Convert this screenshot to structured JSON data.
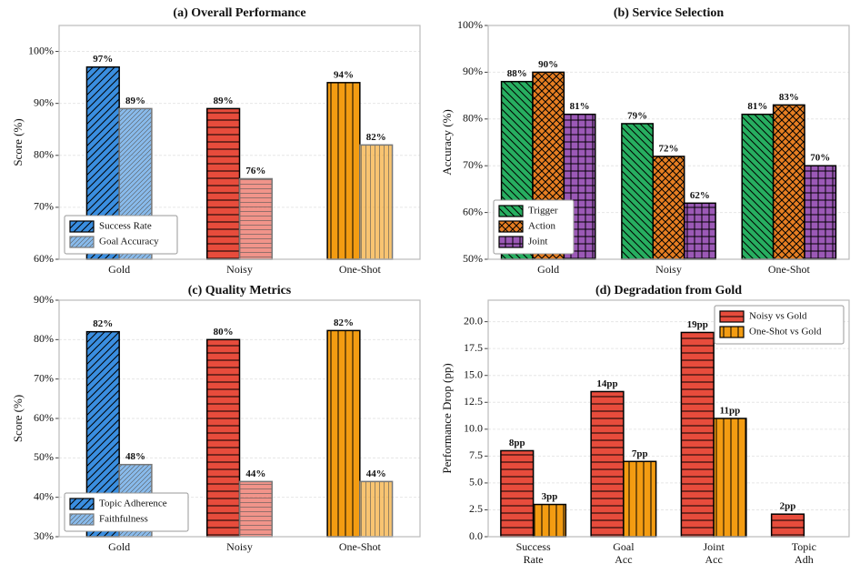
{
  "charts": [
    {
      "chart_data": {
        "type": "bar",
        "title": "(a) Overall Performance",
        "ylabel": "Score (%)",
        "categories": [
          "Gold",
          "Noisy",
          "One-Shot"
        ],
        "series": [
          {
            "name": "Success Rate",
            "colors": [
              "#3a8ee0",
              "#e74c3c",
              "#f39c12"
            ],
            "hatches": [
              "//",
              "-",
              "|"
            ],
            "values": [
              97,
              89,
              94
            ],
            "value_labels": [
              "97%",
              "89%",
              "94%"
            ]
          },
          {
            "name": "Goal Accuracy",
            "colors": [
              "#3a8ee0",
              "#e74c3c",
              "#f39c12"
            ],
            "hatches": [
              "//",
              "-",
              "|"
            ],
            "alpha": 0.6,
            "values": [
              89,
              75.5,
              82
            ],
            "value_labels": [
              "89%",
              "76%",
              "82%"
            ]
          }
        ],
        "ylim": [
          60,
          105
        ],
        "yticks": [
          {
            "value": 60,
            "label": "60%"
          },
          {
            "value": 70,
            "label": "70%"
          },
          {
            "value": 80,
            "label": "80%"
          },
          {
            "value": 90,
            "label": "90%"
          },
          {
            "value": 100,
            "label": "100%"
          }
        ],
        "grid": true,
        "legend": "lower left"
      }
    },
    {
      "chart_data": {
        "type": "bar",
        "title": "(b) Service Selection",
        "ylabel": "Accuracy (%)",
        "categories": [
          "Gold",
          "Noisy",
          "One-Shot"
        ],
        "series": [
          {
            "name": "Trigger",
            "color": "#27ae60",
            "hatch": "\\\\",
            "values": [
              88,
              79,
              81
            ],
            "value_labels": [
              "88%",
              "79%",
              "81%"
            ]
          },
          {
            "name": "Action",
            "color": "#e67e22",
            "hatch": "xx",
            "values": [
              90,
              72,
              83
            ],
            "value_labels": [
              "90%",
              "72%",
              "83%"
            ]
          },
          {
            "name": "Joint",
            "color": "#9b59b6",
            "hatch": "++",
            "values": [
              81,
              62,
              70
            ],
            "value_labels": [
              "81%",
              "62%",
              "70%"
            ]
          }
        ],
        "ylim": [
          50,
          100
        ],
        "yticks": [
          {
            "value": 50,
            "label": "50%"
          },
          {
            "value": 60,
            "label": "60%"
          },
          {
            "value": 70,
            "label": "70%"
          },
          {
            "value": 80,
            "label": "80%"
          },
          {
            "value": 90,
            "label": "90%"
          },
          {
            "value": 100,
            "label": "100%"
          }
        ],
        "grid": true,
        "legend": "lower left"
      }
    },
    {
      "chart_data": {
        "type": "bar",
        "title": "(c) Quality Metrics",
        "ylabel": "Score (%)",
        "categories": [
          "Gold",
          "Noisy",
          "One-Shot"
        ],
        "series": [
          {
            "name": "Topic Adherence",
            "colors": [
              "#3a8ee0",
              "#e74c3c",
              "#f39c12"
            ],
            "hatches": [
              "//",
              "-",
              "|"
            ],
            "values": [
              82,
              80,
              82.3
            ],
            "value_labels": [
              "82%",
              "80%",
              "82%"
            ]
          },
          {
            "name": "Faithfulness",
            "colors": [
              "#3a8ee0",
              "#e74c3c",
              "#f39c12"
            ],
            "hatches": [
              "//",
              "-",
              "|"
            ],
            "alpha": 0.6,
            "values": [
              48.3,
              44,
              44
            ],
            "value_labels": [
              "48%",
              "44%",
              "44%"
            ]
          }
        ],
        "ylim": [
          30,
          90
        ],
        "yticks": [
          {
            "value": 30,
            "label": "30%"
          },
          {
            "value": 40,
            "label": "40%"
          },
          {
            "value": 50,
            "label": "50%"
          },
          {
            "value": 60,
            "label": "60%"
          },
          {
            "value": 70,
            "label": "70%"
          },
          {
            "value": 80,
            "label": "80%"
          },
          {
            "value": 90,
            "label": "90%"
          }
        ],
        "grid": true,
        "legend": "lower left"
      }
    },
    {
      "chart_data": {
        "type": "bar",
        "title": "(d) Degradation from Gold",
        "ylabel": "Performance Drop (pp)",
        "categories": [
          "Success Rate",
          "Goal Acc",
          "Joint Acc",
          "Topic Adh"
        ],
        "series": [
          {
            "name": "Noisy vs Gold",
            "color": "#e74c3c",
            "hatch": "-",
            "values": [
              8,
              13.5,
              19,
              2.1
            ],
            "value_labels": [
              "8pp",
              "14pp",
              "19pp",
              "2pp"
            ]
          },
          {
            "name": "One-Shot vs Gold",
            "color": "#f39c12",
            "hatch": "|",
            "values": [
              3,
              7,
              11,
              null
            ],
            "value_labels": [
              "3pp",
              "7pp",
              "11pp",
              null
            ]
          }
        ],
        "ylim": [
          0,
          22
        ],
        "yticks": [
          {
            "value": 0,
            "label": "0.0"
          },
          {
            "value": 2.5,
            "label": "2.5"
          },
          {
            "value": 5,
            "label": "5.0"
          },
          {
            "value": 7.5,
            "label": "7.5"
          },
          {
            "value": 10,
            "label": "10.0"
          },
          {
            "value": 12.5,
            "label": "12.5"
          },
          {
            "value": 15,
            "label": "15.0"
          },
          {
            "value": 17.5,
            "label": "17.5"
          },
          {
            "value": 20,
            "label": "20.0"
          }
        ],
        "grid": true,
        "legend": "upper right"
      }
    }
  ]
}
